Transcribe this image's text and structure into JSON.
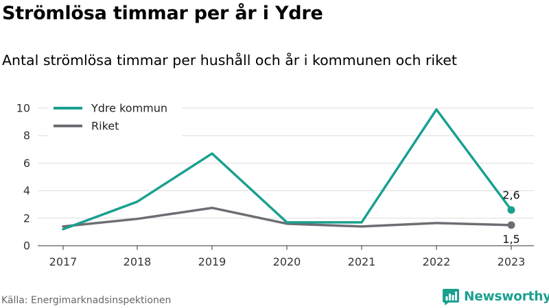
{
  "title": "Strömlösa timmar per år i Ydre",
  "subtitle": "Antal strömlösa timmar per hushåll och år i kommunen och riket",
  "source": "Källa: Energimarknadsinspektionen",
  "brand": {
    "name": "Newsworthy",
    "icon": "newsworthy-logo-icon",
    "color": "#1aa08f"
  },
  "chart_data": {
    "type": "line",
    "categories": [
      "2017",
      "2018",
      "2019",
      "2020",
      "2021",
      "2022",
      "2023"
    ],
    "ylim": [
      0,
      10
    ],
    "yticks": [
      "0",
      "2",
      "4",
      "6",
      "8",
      "10"
    ],
    "grid": true,
    "legend_position": "top-left",
    "series": [
      {
        "name": "Ydre kommun",
        "color": "#1aa08f",
        "values": [
          1.2,
          3.2,
          6.7,
          1.7,
          1.7,
          9.9,
          2.6
        ],
        "end_label": "2,6"
      },
      {
        "name": "Riket",
        "color": "#6e6d73",
        "values": [
          1.4,
          1.95,
          2.75,
          1.6,
          1.4,
          1.65,
          1.5
        ],
        "end_label": "1,5"
      }
    ]
  }
}
